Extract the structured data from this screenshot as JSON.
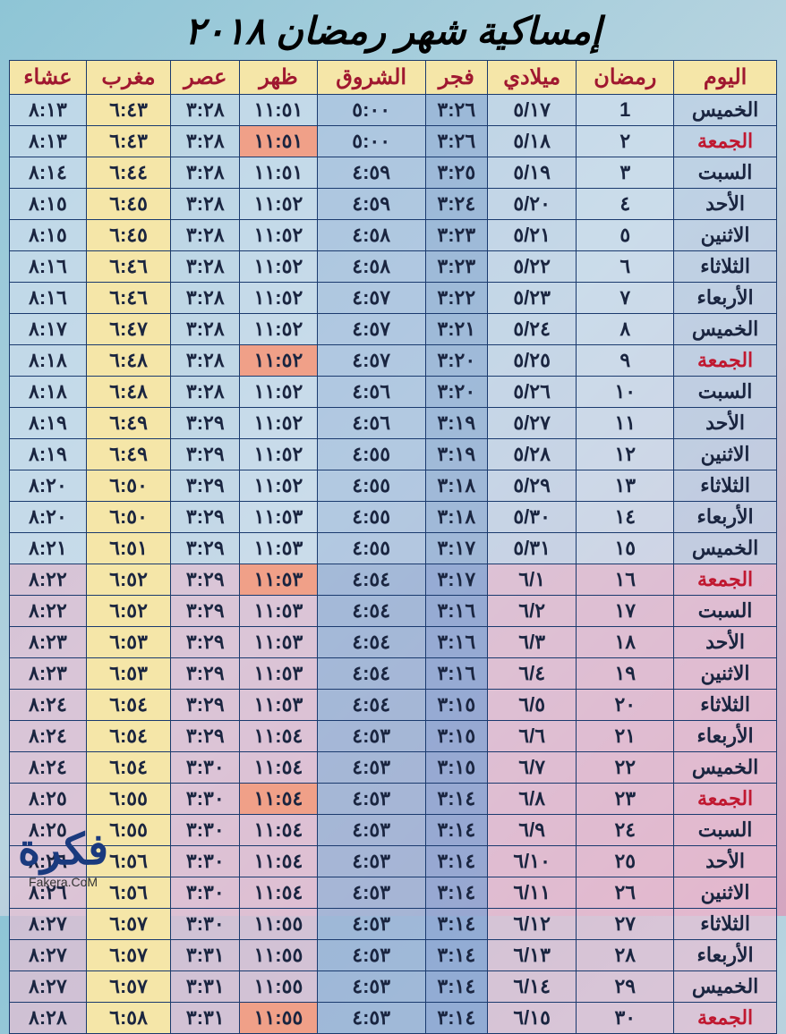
{
  "title": "إمساكية شهر رمضان ٢٠١٨",
  "headers": {
    "day": "اليوم",
    "ramadan": "رمضان",
    "miladi": "ميلادي",
    "fajr": "فجر",
    "shuruq": "الشروق",
    "dhuhr": "ظهر",
    "asr": "عصر",
    "maghrib": "مغرب",
    "isha": "عشاء"
  },
  "watermark": {
    "main": "فكرة",
    "sub": "Fakera.CoM"
  },
  "colors": {
    "border": "#1a3a6e",
    "header_bg": "#f5e6a8",
    "header_text": "#a01830",
    "friday_text": "#c01830",
    "friday_dhuhr_bg": "#f0a088",
    "maghrib_bg": "#f5e6a8",
    "cell_text": "#1a2540"
  },
  "rows": [
    {
      "day": "الخميس",
      "ramadan": "1",
      "miladi": "٥/١٧",
      "fajr": "٣:٢٦",
      "shuruq": "٥:٠٠",
      "dhuhr": "١١:٥١",
      "asr": "٣:٢٨",
      "maghrib": "٦:٤٣",
      "isha": "٨:١٣",
      "friday": false,
      "pink": false
    },
    {
      "day": "الجمعة",
      "ramadan": "٢",
      "miladi": "٥/١٨",
      "fajr": "٣:٢٦",
      "shuruq": "٥:٠٠",
      "dhuhr": "١١:٥١",
      "asr": "٣:٢٨",
      "maghrib": "٦:٤٣",
      "isha": "٨:١٣",
      "friday": true,
      "pink": false
    },
    {
      "day": "السبت",
      "ramadan": "٣",
      "miladi": "٥/١٩",
      "fajr": "٣:٢٥",
      "shuruq": "٤:٥٩",
      "dhuhr": "١١:٥١",
      "asr": "٣:٢٨",
      "maghrib": "٦:٤٤",
      "isha": "٨:١٤",
      "friday": false,
      "pink": false
    },
    {
      "day": "الأحد",
      "ramadan": "٤",
      "miladi": "٥/٢٠",
      "fajr": "٣:٢٤",
      "shuruq": "٤:٥٩",
      "dhuhr": "١١:٥٢",
      "asr": "٣:٢٨",
      "maghrib": "٦:٤٥",
      "isha": "٨:١٥",
      "friday": false,
      "pink": false
    },
    {
      "day": "الاثنين",
      "ramadan": "٥",
      "miladi": "٥/٢١",
      "fajr": "٣:٢٣",
      "shuruq": "٤:٥٨",
      "dhuhr": "١١:٥٢",
      "asr": "٣:٢٨",
      "maghrib": "٦:٤٥",
      "isha": "٨:١٥",
      "friday": false,
      "pink": false
    },
    {
      "day": "الثلاثاء",
      "ramadan": "٦",
      "miladi": "٥/٢٢",
      "fajr": "٣:٢٣",
      "shuruq": "٤:٥٨",
      "dhuhr": "١١:٥٢",
      "asr": "٣:٢٨",
      "maghrib": "٦:٤٦",
      "isha": "٨:١٦",
      "friday": false,
      "pink": false
    },
    {
      "day": "الأربعاء",
      "ramadan": "٧",
      "miladi": "٥/٢٣",
      "fajr": "٣:٢٢",
      "shuruq": "٤:٥٧",
      "dhuhr": "١١:٥٢",
      "asr": "٣:٢٨",
      "maghrib": "٦:٤٦",
      "isha": "٨:١٦",
      "friday": false,
      "pink": false
    },
    {
      "day": "الخميس",
      "ramadan": "٨",
      "miladi": "٥/٢٤",
      "fajr": "٣:٢١",
      "shuruq": "٤:٥٧",
      "dhuhr": "١١:٥٢",
      "asr": "٣:٢٨",
      "maghrib": "٦:٤٧",
      "isha": "٨:١٧",
      "friday": false,
      "pink": false
    },
    {
      "day": "الجمعة",
      "ramadan": "٩",
      "miladi": "٥/٢٥",
      "fajr": "٣:٢٠",
      "shuruq": "٤:٥٧",
      "dhuhr": "١١:٥٢",
      "asr": "٣:٢٨",
      "maghrib": "٦:٤٨",
      "isha": "٨:١٨",
      "friday": true,
      "pink": false
    },
    {
      "day": "السبت",
      "ramadan": "١٠",
      "miladi": "٥/٢٦",
      "fajr": "٣:٢٠",
      "shuruq": "٤:٥٦",
      "dhuhr": "١١:٥٢",
      "asr": "٣:٢٨",
      "maghrib": "٦:٤٨",
      "isha": "٨:١٨",
      "friday": false,
      "pink": false
    },
    {
      "day": "الأحد",
      "ramadan": "١١",
      "miladi": "٥/٢٧",
      "fajr": "٣:١٩",
      "shuruq": "٤:٥٦",
      "dhuhr": "١١:٥٢",
      "asr": "٣:٢٩",
      "maghrib": "٦:٤٩",
      "isha": "٨:١٩",
      "friday": false,
      "pink": false
    },
    {
      "day": "الاثنين",
      "ramadan": "١٢",
      "miladi": "٥/٢٨",
      "fajr": "٣:١٩",
      "shuruq": "٤:٥٥",
      "dhuhr": "١١:٥٢",
      "asr": "٣:٢٩",
      "maghrib": "٦:٤٩",
      "isha": "٨:١٩",
      "friday": false,
      "pink": false
    },
    {
      "day": "الثلاثاء",
      "ramadan": "١٣",
      "miladi": "٥/٢٩",
      "fajr": "٣:١٨",
      "shuruq": "٤:٥٥",
      "dhuhr": "١١:٥٢",
      "asr": "٣:٢٩",
      "maghrib": "٦:٥٠",
      "isha": "٨:٢٠",
      "friday": false,
      "pink": false
    },
    {
      "day": "الأربعاء",
      "ramadan": "١٤",
      "miladi": "٥/٣٠",
      "fajr": "٣:١٨",
      "shuruq": "٤:٥٥",
      "dhuhr": "١١:٥٣",
      "asr": "٣:٢٩",
      "maghrib": "٦:٥٠",
      "isha": "٨:٢٠",
      "friday": false,
      "pink": false
    },
    {
      "day": "الخميس",
      "ramadan": "١٥",
      "miladi": "٥/٣١",
      "fajr": "٣:١٧",
      "shuruq": "٤:٥٥",
      "dhuhr": "١١:٥٣",
      "asr": "٣:٢٩",
      "maghrib": "٦:٥١",
      "isha": "٨:٢١",
      "friday": false,
      "pink": false
    },
    {
      "day": "الجمعة",
      "ramadan": "١٦",
      "miladi": "٦/١",
      "fajr": "٣:١٧",
      "shuruq": "٤:٥٤",
      "dhuhr": "١١:٥٣",
      "asr": "٣:٢٩",
      "maghrib": "٦:٥٢",
      "isha": "٨:٢٢",
      "friday": true,
      "pink": true
    },
    {
      "day": "السبت",
      "ramadan": "١٧",
      "miladi": "٦/٢",
      "fajr": "٣:١٦",
      "shuruq": "٤:٥٤",
      "dhuhr": "١١:٥٣",
      "asr": "٣:٢٩",
      "maghrib": "٦:٥٢",
      "isha": "٨:٢٢",
      "friday": false,
      "pink": true
    },
    {
      "day": "الأحد",
      "ramadan": "١٨",
      "miladi": "٦/٣",
      "fajr": "٣:١٦",
      "shuruq": "٤:٥٤",
      "dhuhr": "١١:٥٣",
      "asr": "٣:٢٩",
      "maghrib": "٦:٥٣",
      "isha": "٨:٢٣",
      "friday": false,
      "pink": true
    },
    {
      "day": "الاثنين",
      "ramadan": "١٩",
      "miladi": "٦/٤",
      "fajr": "٣:١٦",
      "shuruq": "٤:٥٤",
      "dhuhr": "١١:٥٣",
      "asr": "٣:٢٩",
      "maghrib": "٦:٥٣",
      "isha": "٨:٢٣",
      "friday": false,
      "pink": true
    },
    {
      "day": "الثلاثاء",
      "ramadan": "٢٠",
      "miladi": "٦/٥",
      "fajr": "٣:١٥",
      "shuruq": "٤:٥٤",
      "dhuhr": "١١:٥٣",
      "asr": "٣:٢٩",
      "maghrib": "٦:٥٤",
      "isha": "٨:٢٤",
      "friday": false,
      "pink": true
    },
    {
      "day": "الأربعاء",
      "ramadan": "٢١",
      "miladi": "٦/٦",
      "fajr": "٣:١٥",
      "shuruq": "٤:٥٣",
      "dhuhr": "١١:٥٤",
      "asr": "٣:٢٩",
      "maghrib": "٦:٥٤",
      "isha": "٨:٢٤",
      "friday": false,
      "pink": true
    },
    {
      "day": "الخميس",
      "ramadan": "٢٢",
      "miladi": "٦/٧",
      "fajr": "٣:١٥",
      "shuruq": "٤:٥٣",
      "dhuhr": "١١:٥٤",
      "asr": "٣:٣٠",
      "maghrib": "٦:٥٤",
      "isha": "٨:٢٤",
      "friday": false,
      "pink": true
    },
    {
      "day": "الجمعة",
      "ramadan": "٢٣",
      "miladi": "٦/٨",
      "fajr": "٣:١٤",
      "shuruq": "٤:٥٣",
      "dhuhr": "١١:٥٤",
      "asr": "٣:٣٠",
      "maghrib": "٦:٥٥",
      "isha": "٨:٢٥",
      "friday": true,
      "pink": true
    },
    {
      "day": "السبت",
      "ramadan": "٢٤",
      "miladi": "٦/٩",
      "fajr": "٣:١٤",
      "shuruq": "٤:٥٣",
      "dhuhr": "١١:٥٤",
      "asr": "٣:٣٠",
      "maghrib": "٦:٥٥",
      "isha": "٨:٢٥",
      "friday": false,
      "pink": true
    },
    {
      "day": "الأحد",
      "ramadan": "٢٥",
      "miladi": "٦/١٠",
      "fajr": "٣:١٤",
      "shuruq": "٤:٥٣",
      "dhuhr": "١١:٥٤",
      "asr": "٣:٣٠",
      "maghrib": "٦:٥٦",
      "isha": "٨:٢٦",
      "friday": false,
      "pink": true
    },
    {
      "day": "الاثنين",
      "ramadan": "٢٦",
      "miladi": "٦/١١",
      "fajr": "٣:١٤",
      "shuruq": "٤:٥٣",
      "dhuhr": "١١:٥٤",
      "asr": "٣:٣٠",
      "maghrib": "٦:٥٦",
      "isha": "٨:٢٦",
      "friday": false,
      "pink": true
    },
    {
      "day": "الثلاثاء",
      "ramadan": "٢٧",
      "miladi": "٦/١٢",
      "fajr": "٣:١٤",
      "shuruq": "٤:٥٣",
      "dhuhr": "١١:٥٥",
      "asr": "٣:٣٠",
      "maghrib": "٦:٥٧",
      "isha": "٨:٢٧",
      "friday": false,
      "pink": true
    },
    {
      "day": "الأربعاء",
      "ramadan": "٢٨",
      "miladi": "٦/١٣",
      "fajr": "٣:١٤",
      "shuruq": "٤:٥٣",
      "dhuhr": "١١:٥٥",
      "asr": "٣:٣١",
      "maghrib": "٦:٥٧",
      "isha": "٨:٢٧",
      "friday": false,
      "pink": true
    },
    {
      "day": "الخميس",
      "ramadan": "٢٩",
      "miladi": "٦/١٤",
      "fajr": "٣:١٤",
      "shuruq": "٤:٥٣",
      "dhuhr": "١١:٥٥",
      "asr": "٣:٣١",
      "maghrib": "٦:٥٧",
      "isha": "٨:٢٧",
      "friday": false,
      "pink": true
    },
    {
      "day": "الجمعة",
      "ramadan": "٣٠",
      "miladi": "٦/١٥",
      "fajr": "٣:١٤",
      "shuruq": "٤:٥٣",
      "dhuhr": "١١:٥٥",
      "asr": "٣:٣١",
      "maghrib": "٦:٥٨",
      "isha": "٨:٢٨",
      "friday": true,
      "pink": true
    }
  ]
}
